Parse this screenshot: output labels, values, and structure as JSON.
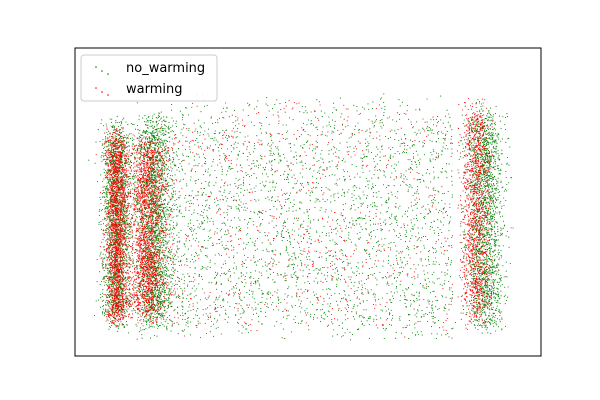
{
  "chart_data": {
    "type": "scatter",
    "title": "",
    "xlabel": "",
    "ylabel": "",
    "xlim": [
      0,
      1
    ],
    "ylim": [
      0,
      1
    ],
    "grid": false,
    "axes_ticks_visible": false,
    "legend_placement": "top-left",
    "series": [
      {
        "name": "no_warming",
        "color": "#008000",
        "marker": "dot",
        "approx_point_count": 9000,
        "clusters": [
          {
            "x_center": 0.09,
            "x_spread": 0.015,
            "y_min": 0.07,
            "y_max": 0.78,
            "share": 0.22
          },
          {
            "x_center": 0.17,
            "x_spread": 0.02,
            "y_min": 0.08,
            "y_max": 0.8,
            "share": 0.22
          },
          {
            "x_center": 0.45,
            "x_spread": 0.22,
            "y_min": 0.05,
            "y_max": 0.85,
            "share": 0.34
          },
          {
            "x_center": 0.88,
            "x_spread": 0.02,
            "y_min": 0.06,
            "y_max": 0.83,
            "share": 0.22
          }
        ]
      },
      {
        "name": "warming",
        "color": "#ff0000",
        "marker": "dot",
        "approx_point_count": 6000,
        "clusters": [
          {
            "x_center": 0.09,
            "x_spread": 0.012,
            "y_min": 0.08,
            "y_max": 0.75,
            "share": 0.32
          },
          {
            "x_center": 0.155,
            "x_spread": 0.02,
            "y_min": 0.1,
            "y_max": 0.72,
            "share": 0.32
          },
          {
            "x_center": 0.45,
            "x_spread": 0.22,
            "y_min": 0.08,
            "y_max": 0.87,
            "share": 0.14
          },
          {
            "x_center": 0.86,
            "x_spread": 0.015,
            "y_min": 0.08,
            "y_max": 0.84,
            "share": 0.22
          }
        ]
      }
    ]
  }
}
